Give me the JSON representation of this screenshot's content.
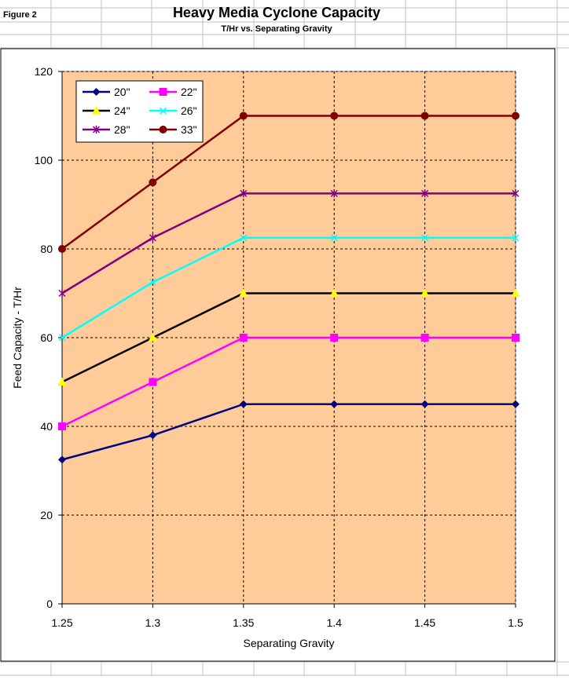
{
  "sheet": {
    "figure_label": "Figure 2",
    "title": "Heavy Media Cyclone Capacity",
    "subtitle": "T/Hr vs. Separating Gravity"
  },
  "colors": {
    "plot_bg": "#FFCC99",
    "chart_bg": "#FFFFFF",
    "grid": "#000000",
    "sheet_grid": "#C0C0C0"
  },
  "chart_data": {
    "type": "line",
    "xlabel": "Separating Gravity",
    "ylabel": "Feed Capacity - T/Hr",
    "x": [
      1.25,
      1.3,
      1.35,
      1.4,
      1.45,
      1.5
    ],
    "x_tick_labels": [
      "1.25",
      "1.3",
      "1.35",
      "1.4",
      "1.45",
      "1.5"
    ],
    "xlim": [
      1.25,
      1.5
    ],
    "ylim": [
      0,
      120
    ],
    "y_ticks": [
      0,
      20,
      40,
      60,
      80,
      100,
      120
    ],
    "grid": true,
    "grid_style": "dashed",
    "legend_position": "top-left",
    "series": [
      {
        "name": "20\"",
        "color": "#000080",
        "marker": "diamond",
        "values": [
          32.5,
          38,
          45,
          45,
          45,
          45
        ]
      },
      {
        "name": "22\"",
        "color": "#FF00FF",
        "marker": "square",
        "values": [
          40,
          50,
          60,
          60,
          60,
          60
        ]
      },
      {
        "name": "24\"",
        "color": "#000000",
        "marker": "triangle",
        "marker_color": "#FFFF00",
        "values": [
          50,
          60,
          70,
          70,
          70,
          70
        ]
      },
      {
        "name": "26\"",
        "color": "#00FFFF",
        "marker": "x",
        "values": [
          60,
          72.5,
          82.5,
          82.5,
          82.5,
          82.5
        ]
      },
      {
        "name": "28\"",
        "color": "#800080",
        "marker": "star",
        "values": [
          70,
          82.5,
          92.5,
          92.5,
          92.5,
          92.5
        ]
      },
      {
        "name": "33\"",
        "color": "#800000",
        "marker": "circle",
        "values": [
          80,
          95,
          110,
          110,
          110,
          110
        ]
      }
    ]
  }
}
